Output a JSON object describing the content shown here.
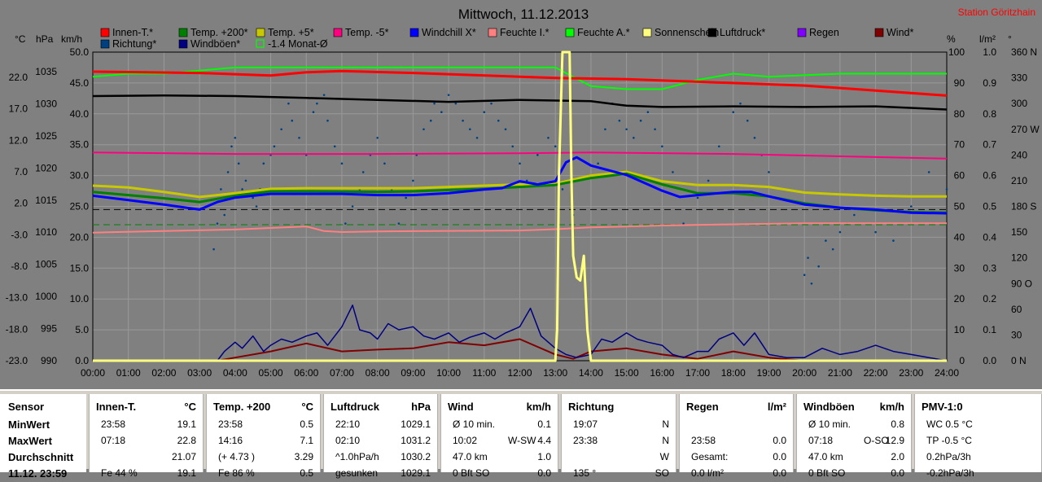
{
  "chart_data": {
    "type": "line",
    "title": "Mittwoch, 11.12.2013",
    "station": "Station Göritzhain",
    "x_ticks": [
      "00:00",
      "01:00",
      "02:00",
      "03:00",
      "04:00",
      "05:00",
      "06:00",
      "07:00",
      "08:00",
      "09:00",
      "10:00",
      "11:00",
      "12:00",
      "13:00",
      "14:00",
      "15:00",
      "16:00",
      "17:00",
      "18:00",
      "19:00",
      "20:00",
      "21:00",
      "22:00",
      "23:00",
      "24:00"
    ],
    "axis_units": {
      "temp": "°C",
      "pressure": "hPa",
      "wind": "km/h",
      "humidity": "%",
      "rain": "l/m²",
      "direction": "°"
    },
    "temp_ticks": [
      "22.0",
      "17.0",
      "12.0",
      "7.0",
      "2.0",
      "-3.0",
      "-8.0",
      "-13.0",
      "-18.0",
      "-23.0"
    ],
    "pressure_ticks": [
      "1035",
      "1030",
      "1025",
      "1020",
      "1015",
      "1010",
      "1005",
      "1000",
      "995",
      "990"
    ],
    "wind_ticks": [
      "50.0",
      "45.0",
      "40.0",
      "35.0",
      "30.0",
      "25.0",
      "20.0",
      "15.0",
      "10.0",
      "5.0",
      "0.0"
    ],
    "humidity_ticks": [
      "100",
      "90",
      "80",
      "70",
      "60",
      "50",
      "40",
      "30",
      "20",
      "10",
      "0"
    ],
    "rain_ticks": [
      "1.0",
      "0.9",
      "0.8",
      "0.7",
      "0.6",
      "0.5",
      "0.4",
      "0.3",
      "0.2",
      "0.1",
      "0.0"
    ],
    "direction_ticks": [
      "360 N",
      "330",
      "300",
      "270 W",
      "240",
      "210",
      "180 S",
      "150",
      "120",
      "90 O",
      "60",
      "30",
      "0 N"
    ],
    "legend": [
      {
        "name": "Innen-T.*",
        "color": "#ff0000"
      },
      {
        "name": "Temp. +200*",
        "color": "#008000"
      },
      {
        "name": "Temp. +5*",
        "color": "#c8c800"
      },
      {
        "name": "Temp. -5*",
        "color": "#ff0080"
      },
      {
        "name": "Windchill X*",
        "color": "#0000ff"
      },
      {
        "name": "Feuchte I.*",
        "color": "#ff8080"
      },
      {
        "name": "Feuchte A.*",
        "color": "#00ff00"
      },
      {
        "name": "Sonnenschein",
        "color": "#ffff80"
      },
      {
        "name": "Luftdruck*",
        "color": "#000000"
      },
      {
        "name": "Regen",
        "color": "#8000ff"
      },
      {
        "name": "Wind*",
        "color": "#800000"
      },
      {
        "name": "Richtung*",
        "color": "#004080"
      },
      {
        "name": "Windböen*",
        "color": "#000080"
      },
      {
        "name": "-1.4 Monat-Ø",
        "color": "#00ff00"
      }
    ],
    "series": [
      {
        "key": "innen",
        "color": "#ff0000",
        "width": 3,
        "axis": "temp",
        "x": [
          0,
          3,
          5,
          6,
          7,
          9,
          12,
          13,
          15,
          17,
          20,
          24
        ],
        "y": [
          22.9,
          22.7,
          22.3,
          22.8,
          23.0,
          22.7,
          22.1,
          21.9,
          21.7,
          21.3,
          20.7,
          19.1
        ]
      },
      {
        "key": "feuchte_a",
        "color": "#00ff00",
        "width": 2,
        "axis": "humidity",
        "x": [
          0,
          1,
          2,
          4,
          8,
          12,
          13,
          13.5,
          14,
          15,
          16,
          17,
          18,
          19,
          21,
          24
        ],
        "y": [
          92,
          93,
          93,
          95,
          95,
          95,
          95,
          92,
          89,
          88,
          88,
          91,
          93,
          92,
          93,
          93
        ]
      },
      {
        "key": "luftdruck",
        "color": "#000000",
        "width": 2.5,
        "axis": "pressure",
        "x": [
          0,
          2,
          4,
          6,
          8,
          10,
          12,
          13,
          14,
          15,
          16,
          18,
          20,
          22,
          24
        ],
        "y": [
          1031.2,
          1031.3,
          1031.2,
          1030.9,
          1030.6,
          1030.3,
          1030.6,
          1030.5,
          1030.4,
          1029.7,
          1029.5,
          1029.6,
          1029.5,
          1029.6,
          1029.1
        ]
      },
      {
        "key": "temp_m5",
        "color": "#ff0080",
        "width": 2,
        "axis": "humidity",
        "x": [
          0,
          4,
          8,
          12,
          14,
          18,
          20,
          24
        ],
        "y": [
          67.5,
          67,
          67,
          67.2,
          67.5,
          67,
          66.5,
          65.5
        ]
      },
      {
        "key": "temp_p5",
        "color": "#c8c800",
        "width": 3,
        "axis": "temp",
        "x": [
          0,
          1,
          2,
          3,
          4,
          5,
          6,
          8,
          9,
          10,
          11,
          12,
          13,
          14,
          15,
          16,
          17,
          18,
          19,
          20,
          21,
          22,
          23,
          24
        ],
        "y": [
          4.8,
          4.5,
          3.8,
          3.0,
          3.6,
          4.3,
          4.4,
          4.4,
          4.4,
          4.6,
          4.8,
          5.0,
          5.1,
          6.4,
          7.0,
          5.5,
          4.9,
          4.9,
          4.6,
          3.7,
          3.4,
          3.2,
          3.1,
          3.1
        ]
      },
      {
        "key": "temp_p200",
        "color": "#008000",
        "width": 3,
        "axis": "temp",
        "x": [
          0,
          1,
          2,
          3,
          4,
          5,
          6,
          8,
          9,
          10,
          11,
          12,
          13,
          14,
          15,
          16,
          17,
          18,
          19,
          20,
          21,
          22,
          23,
          24
        ],
        "y": [
          3.8,
          3.3,
          2.8,
          2.2,
          3.2,
          3.9,
          3.9,
          3.8,
          3.9,
          4.1,
          4.3,
          4.6,
          4.9,
          6.0,
          6.7,
          5.0,
          3.6,
          3.6,
          3.1,
          2.0,
          1.3,
          0.9,
          0.6,
          0.5
        ]
      },
      {
        "key": "windchill",
        "color": "#0000ff",
        "width": 3,
        "axis": "temp",
        "x": [
          0,
          1,
          2,
          3,
          3.5,
          4,
          5,
          6,
          7,
          8,
          9,
          10,
          11,
          11.5,
          12,
          12.5,
          13,
          13.3,
          13.6,
          14,
          15,
          16,
          16.5,
          17,
          18,
          18.5,
          19,
          20,
          21,
          22,
          23,
          24
        ],
        "y": [
          3.2,
          2.5,
          1.8,
          1.0,
          2.2,
          2.9,
          3.5,
          3.5,
          3.5,
          3.3,
          3.3,
          3.6,
          4.2,
          4.4,
          5.5,
          5.0,
          5.5,
          8.5,
          9.3,
          8.0,
          6.5,
          4.0,
          3.0,
          3.3,
          3.8,
          3.8,
          3.1,
          1.8,
          1.3,
          1.0,
          0.5,
          0.4
        ]
      },
      {
        "key": "feuchte_i",
        "color": "#ff8080",
        "width": 2,
        "axis": "humidity",
        "x": [
          0,
          2,
          4,
          6,
          6.5,
          7,
          8,
          12,
          13,
          14,
          16,
          18,
          20,
          24
        ],
        "y": [
          41.5,
          42,
          42.5,
          43.5,
          42,
          41.7,
          41.9,
          42.2,
          42.6,
          43.2,
          43.8,
          44.2,
          44.5,
          44.5
        ]
      },
      {
        "key": "sun",
        "color": "#ffff80",
        "width": 3,
        "axis": "wind",
        "x": [
          0,
          13,
          13.05,
          13.1,
          13.2,
          13.3,
          13.4,
          13.45,
          13.5,
          13.6,
          13.7,
          13.8,
          13.9,
          14.0,
          24
        ],
        "y": [
          0,
          0,
          5,
          30,
          50,
          50,
          50,
          30,
          17,
          13.5,
          13,
          17,
          5,
          0,
          0
        ]
      },
      {
        "key": "wind",
        "color": "#800000",
        "width": 2,
        "axis": "wind",
        "x": [
          0,
          3.5,
          4,
          5,
          6,
          7,
          8,
          9,
          10,
          11,
          12,
          13,
          13.5,
          14,
          15,
          16,
          17,
          18,
          19,
          20,
          21,
          22,
          23,
          24
        ],
        "y": [
          0,
          0,
          0.5,
          1.5,
          2.8,
          1.5,
          1.8,
          2.0,
          3.0,
          2.5,
          3.5,
          1.0,
          0.3,
          1.5,
          2.0,
          1.0,
          0.3,
          1.5,
          0.5,
          0,
          0,
          0,
          0,
          0
        ]
      },
      {
        "key": "boeen",
        "color": "#000080",
        "width": 1.5,
        "axis": "wind",
        "x": [
          0,
          3.5,
          3.7,
          4.0,
          4.2,
          4.5,
          4.8,
          5.0,
          5.3,
          5.6,
          6.0,
          6.3,
          6.6,
          7.0,
          7.3,
          7.5,
          7.8,
          8.0,
          8.3,
          8.6,
          9.0,
          9.3,
          9.6,
          10.0,
          10.3,
          10.6,
          11.0,
          11.3,
          11.6,
          12.0,
          12.3,
          12.6,
          13.0,
          13.3,
          13.6,
          14.0,
          14.3,
          14.6,
          15.0,
          15.3,
          15.6,
          16.0,
          16.3,
          16.6,
          17.0,
          17.3,
          17.6,
          18.0,
          18.3,
          18.6,
          19.0,
          19.5,
          20.0,
          20.5,
          21.0,
          21.5,
          22.0,
          22.5,
          23.0,
          23.5,
          24
        ],
        "y": [
          0,
          0,
          1.5,
          3.0,
          2.0,
          4.0,
          1.5,
          2.5,
          3.5,
          3.0,
          4.0,
          4.5,
          2.5,
          5.5,
          9.0,
          5.0,
          4.5,
          3.5,
          6.0,
          5.0,
          5.5,
          4.0,
          3.5,
          4.5,
          3.0,
          3.8,
          4.5,
          3.5,
          4.5,
          5.5,
          8.5,
          4.0,
          2.0,
          1.0,
          0.5,
          1.0,
          3.5,
          3.0,
          4.5,
          3.5,
          3.0,
          2.5,
          1.0,
          0.5,
          1.5,
          1.5,
          3.5,
          4.5,
          2.5,
          4.5,
          1.0,
          0.5,
          0.5,
          2.0,
          1.0,
          1.5,
          2.5,
          1.5,
          1.0,
          0.5,
          0
        ]
      },
      {
        "key": "dash_black",
        "color": "#000000",
        "width": 1,
        "axis": "temp",
        "dash": "8,5",
        "x": [
          0,
          24
        ],
        "y": [
          1.0,
          1.0
        ]
      },
      {
        "key": "dash_green",
        "color": "#008000",
        "width": 1,
        "axis": "temp",
        "dash": "8,5",
        "x": [
          0,
          24
        ],
        "y": [
          -1.4,
          -1.4
        ]
      }
    ],
    "direction_points": {
      "color": "#004080",
      "x": [
        3.4,
        3.5,
        3.6,
        3.7,
        3.8,
        3.9,
        4.0,
        4.1,
        4.2,
        4.3,
        4.5,
        4.6,
        4.7,
        4.8,
        5.0,
        5.1,
        5.3,
        5.5,
        5.6,
        5.8,
        6.0,
        6.2,
        6.3,
        6.5,
        6.6,
        6.8,
        7.0,
        7.1,
        7.3,
        7.5,
        7.6,
        7.8,
        8.0,
        8.2,
        8.4,
        8.6,
        8.8,
        9.0,
        9.1,
        9.3,
        9.5,
        9.6,
        9.8,
        10.0,
        10.2,
        10.4,
        10.6,
        10.8,
        11.0,
        11.2,
        11.4,
        11.6,
        11.8,
        12.0,
        12.2,
        12.5,
        12.8,
        13.0,
        13.2,
        13.5,
        14.2,
        14.4,
        14.6,
        14.8,
        15.0,
        15.2,
        15.4,
        15.6,
        15.8,
        16.0,
        16.3,
        16.6,
        17.0,
        17.3,
        17.6,
        18.0,
        18.2,
        18.4,
        18.6,
        18.8,
        19.0,
        20.0,
        20.1,
        20.2,
        20.4,
        20.6,
        20.8,
        21.0,
        21.2,
        21.4,
        22.0,
        22.5,
        23.0,
        23.5,
        24.0
      ],
      "y": [
        130,
        160,
        200,
        170,
        220,
        250,
        260,
        230,
        200,
        210,
        190,
        180,
        200,
        230,
        240,
        250,
        270,
        300,
        280,
        260,
        240,
        290,
        300,
        310,
        280,
        250,
        230,
        160,
        180,
        200,
        220,
        240,
        260,
        230,
        200,
        160,
        190,
        210,
        240,
        270,
        280,
        300,
        290,
        310,
        300,
        280,
        270,
        260,
        290,
        300,
        280,
        270,
        250,
        230,
        210,
        240,
        260,
        250,
        200,
        170,
        230,
        270,
        300,
        280,
        270,
        260,
        280,
        290,
        270,
        250,
        220,
        160,
        190,
        210,
        250,
        290,
        300,
        280,
        260,
        240,
        220,
        100,
        120,
        90,
        110,
        140,
        130,
        150,
        160,
        170,
        150,
        140,
        180,
        220,
        200
      ]
    }
  },
  "summary": {
    "sensor": {
      "header": "Sensor",
      "rows": [
        "MinWert",
        "MaxWert",
        "Durchschnitt",
        "11.12. 23:59"
      ]
    },
    "panels": [
      {
        "header": "Innen-T.",
        "unit": "°C",
        "rows": [
          [
            "23:58",
            "",
            "19.1"
          ],
          [
            "07:18",
            "",
            "22.8"
          ],
          [
            "",
            "",
            "21.07"
          ],
          [
            "Fe 44 %",
            "",
            "19.1"
          ]
        ]
      },
      {
        "header": "Temp. +200",
        "unit": "°C",
        "rows": [
          [
            "23:58",
            "",
            "0.5"
          ],
          [
            "14:16",
            "",
            "7.1"
          ],
          [
            "(+ 4.73 )",
            "",
            "3.29"
          ],
          [
            "Fe 86 %",
            "",
            "0.5"
          ]
        ]
      },
      {
        "header": "Luftdruck",
        "unit": "hPa",
        "rows": [
          [
            "22:10",
            "",
            "1029.1"
          ],
          [
            "02:10",
            "",
            "1031.2"
          ],
          [
            "^1.0hPa/h",
            "",
            "1030.2"
          ],
          [
            "gesunken",
            "",
            "1029.1"
          ]
        ]
      },
      {
        "header": "Wind",
        "unit": "km/h",
        "rows": [
          [
            "Ø 10 min.",
            "",
            "0.1"
          ],
          [
            "10:02",
            "W-SW",
            "4.4"
          ],
          [
            "47.0 km",
            "",
            "1.0"
          ],
          [
            "0 Bft SO",
            "",
            "0.0"
          ]
        ]
      },
      {
        "header": "Richtung",
        "unit": "",
        "rows": [
          [
            "19:07",
            "",
            "N"
          ],
          [
            "23:38",
            "",
            "N"
          ],
          [
            "",
            "",
            "W"
          ],
          [
            "135 °",
            "",
            "SO"
          ]
        ]
      },
      {
        "header": "Regen",
        "unit": "l/m²",
        "rows": [
          [
            "",
            "",
            ""
          ],
          [
            "23:58",
            "",
            "0.0"
          ],
          [
            "Gesamt:",
            "",
            "0.0"
          ],
          [
            "0.0 l/m²",
            "",
            "0.0"
          ]
        ]
      },
      {
        "header": "Windböen",
        "unit": "km/h",
        "rows": [
          [
            "Ø 10 min.",
            "",
            "0.8"
          ],
          [
            "07:18",
            "O-SO",
            "12.9"
          ],
          [
            "47.0 km",
            "",
            "2.0"
          ],
          [
            "0 Bft SO",
            "",
            "0.0"
          ]
        ]
      },
      {
        "header": "PMV-1:0",
        "unit": "",
        "rows": [
          [
            "WC 0.5 °C",
            "",
            ""
          ],
          [
            "TP -0.5 °C",
            "",
            ""
          ],
          [
            "0.2hPa/3h",
            "",
            ""
          ],
          [
            "-0.2hPa/3h",
            "",
            ""
          ]
        ]
      }
    ]
  }
}
